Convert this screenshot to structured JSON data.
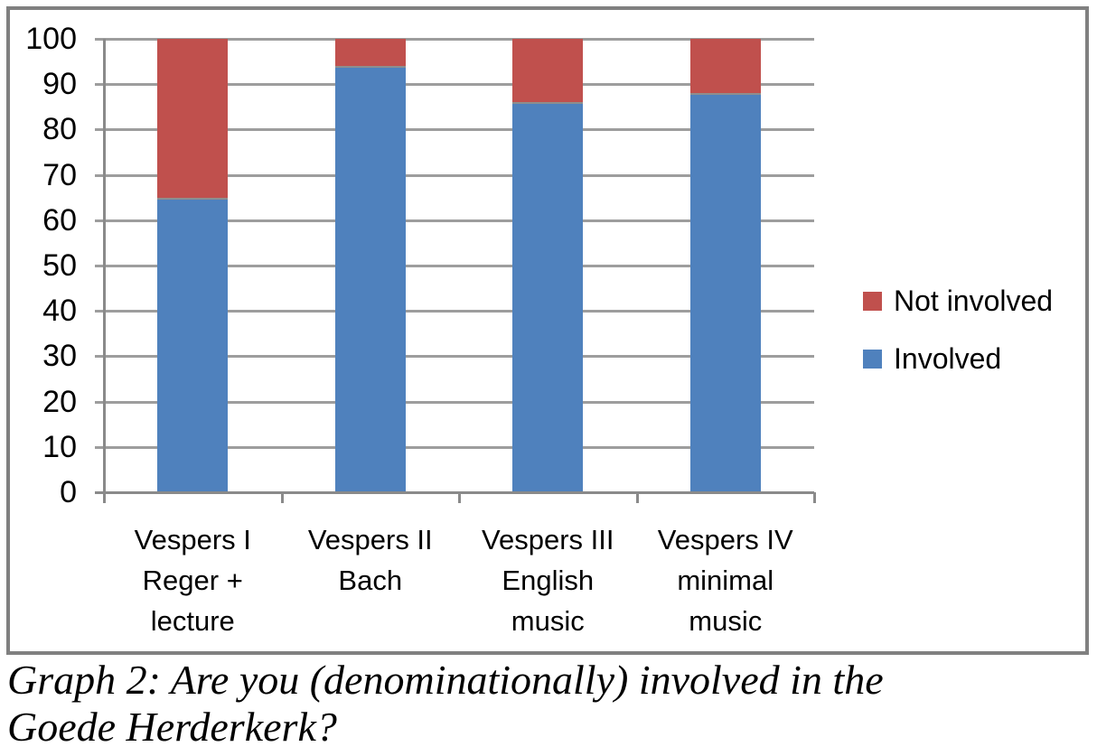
{
  "chart_data": {
    "type": "bar",
    "stacked": true,
    "categories": [
      [
        "Vespers I",
        "Reger +",
        "lecture"
      ],
      [
        "Vespers II",
        "Bach"
      ],
      [
        "Vespers III",
        "English",
        "music"
      ],
      [
        "Vespers IV",
        "minimal",
        "music"
      ]
    ],
    "series": [
      {
        "name": "Involved",
        "color": "#4F81BD",
        "values": [
          65,
          94,
          86,
          88
        ]
      },
      {
        "name": "Not involved",
        "color": "#C0504D",
        "values": [
          35,
          6,
          14,
          12
        ]
      }
    ],
    "legend": [
      {
        "label": "Not involved",
        "color": "#C0504D"
      },
      {
        "label": "Involved",
        "color": "#4F81BD"
      }
    ],
    "title": "",
    "xlabel": "",
    "ylabel": "",
    "ylim": [
      0,
      100
    ],
    "y_ticks": [
      0,
      10,
      20,
      30,
      40,
      50,
      60,
      70,
      80,
      90,
      100
    ],
    "grid": "horizontal",
    "legend_position": "right"
  },
  "caption": {
    "lines": [
      "Graph 2: Are you (denominationally) involved in the",
      "Goede Herderkerk?"
    ]
  },
  "colors": {
    "gridline": "#9d9d9d",
    "axis": "#8a8a8a",
    "frame_border": "#808080",
    "segment_divider": "#8e8e8e",
    "background": "#FFFFFF",
    "text": "#000000"
  }
}
